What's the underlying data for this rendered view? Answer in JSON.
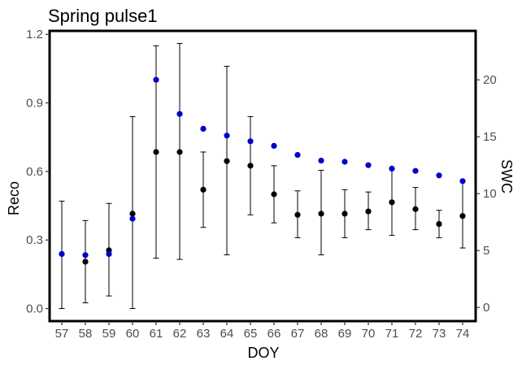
{
  "chart_data": {
    "type": "scatter",
    "title": "Spring pulse1",
    "xlabel": "DOY",
    "ylabel": "Reco",
    "y2label": "SWC",
    "x": [
      57,
      58,
      59,
      60,
      61,
      62,
      63,
      64,
      65,
      66,
      67,
      68,
      69,
      70,
      71,
      72,
      73,
      74
    ],
    "x_ticks": [
      "57",
      "58",
      "59",
      "60",
      "61",
      "62",
      "63",
      "64",
      "65",
      "66",
      "67",
      "68",
      "69",
      "70",
      "71",
      "72",
      "73",
      "74"
    ],
    "ylim": [
      -0.055,
      1.215
    ],
    "y_ticks": [
      "0.0",
      "0.3",
      "0.6",
      "0.9",
      "1.2"
    ],
    "y2lim": [
      -1.2,
      24.3
    ],
    "y2_ticks": [
      "0",
      "5",
      "10",
      "15",
      "20"
    ],
    "grid": false,
    "series": [
      {
        "axis": "left",
        "color": "#000000",
        "values": [
          null,
          0.205,
          0.255,
          0.415,
          0.685,
          0.685,
          0.52,
          0.645,
          0.625,
          0.5,
          0.41,
          0.415,
          0.415,
          0.425,
          0.465,
          0.435,
          0.37,
          0.405
        ],
        "error_low": [
          0.0,
          0.025,
          0.055,
          0.0,
          0.22,
          0.215,
          0.355,
          0.235,
          0.41,
          0.375,
          0.31,
          0.235,
          0.31,
          0.345,
          0.32,
          0.345,
          0.31,
          0.265
        ],
        "error_high": [
          0.47,
          0.385,
          0.46,
          0.84,
          1.15,
          1.16,
          0.685,
          1.06,
          0.84,
          0.625,
          0.515,
          0.605,
          0.52,
          0.51,
          0.61,
          0.53,
          0.43,
          0.555
        ]
      },
      {
        "axis": "right",
        "color": "#0000cc",
        "values": [
          4.7,
          4.6,
          4.7,
          7.8,
          20.0,
          17.0,
          15.7,
          15.1,
          14.6,
          14.2,
          13.4,
          12.9,
          12.8,
          12.5,
          12.2,
          12.0,
          11.6,
          11.1
        ]
      }
    ]
  }
}
